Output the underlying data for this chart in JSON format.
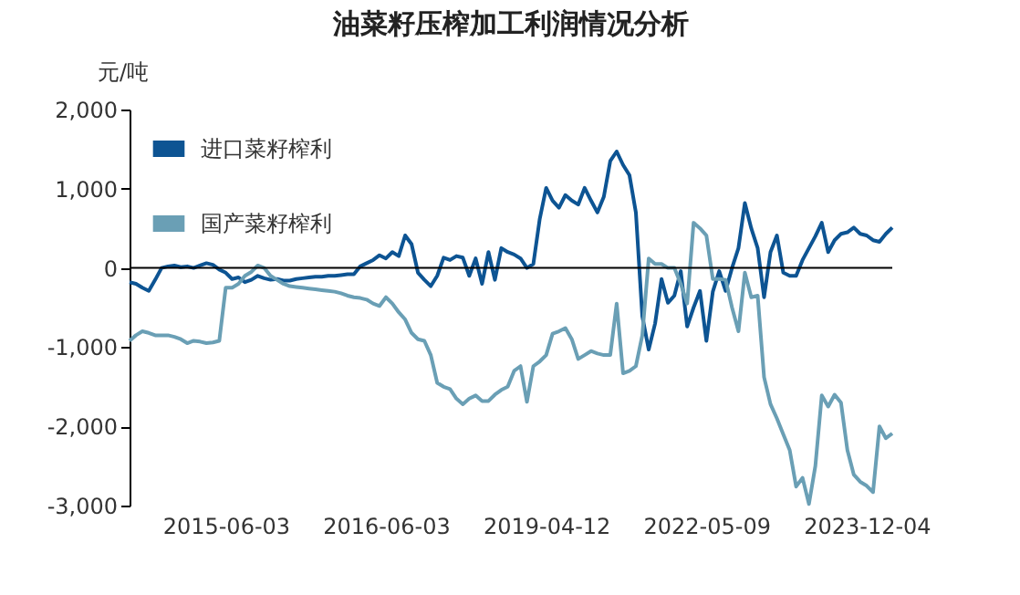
{
  "chart_data": {
    "type": "line",
    "title": "油菜籽压榨加工利润情况分析",
    "ylabel": "元/吨",
    "categories": [
      null,
      null,
      null,
      null,
      null,
      null,
      null,
      null,
      null,
      null,
      null,
      null,
      null,
      null,
      null,
      "2015-06-03",
      null,
      null,
      null,
      null,
      null,
      null,
      null,
      null,
      null,
      null,
      null,
      null,
      null,
      null,
      null,
      null,
      null,
      null,
      null,
      null,
      null,
      null,
      null,
      null,
      "2016-06-03",
      null,
      null,
      null,
      null,
      null,
      null,
      null,
      null,
      null,
      null,
      null,
      null,
      null,
      null,
      null,
      null,
      null,
      null,
      null,
      null,
      null,
      null,
      null,
      null,
      "2019-04-12",
      null,
      null,
      null,
      null,
      null,
      null,
      null,
      null,
      null,
      null,
      null,
      null,
      null,
      null,
      null,
      null,
      null,
      null,
      null,
      null,
      null,
      null,
      null,
      null,
      "2022-05-09",
      null,
      null,
      null,
      null,
      null,
      null,
      null,
      null,
      null,
      null,
      null,
      null,
      null,
      null,
      null,
      null,
      null,
      null,
      null,
      null,
      null,
      null,
      null,
      null,
      "2023-12-04",
      null,
      null,
      null,
      null
    ],
    "series": [
      {
        "name": "进口菜籽榨利",
        "color": "#0d5493",
        "values": [
          -180,
          -200,
          -250,
          -290,
          -150,
          0,
          20,
          30,
          10,
          20,
          0,
          30,
          60,
          40,
          -20,
          -60,
          -140,
          -120,
          -180,
          -150,
          -100,
          -130,
          -150,
          -140,
          -160,
          -160,
          -140,
          -130,
          -120,
          -110,
          -110,
          -100,
          -100,
          -90,
          -80,
          -80,
          20,
          60,
          100,
          160,
          120,
          200,
          150,
          410,
          300,
          -60,
          -150,
          -230,
          -100,
          130,
          100,
          150,
          130,
          -100,
          120,
          -200,
          200,
          -150,
          250,
          200,
          170,
          120,
          0,
          50,
          620,
          1010,
          850,
          760,
          920,
          850,
          800,
          1010,
          850,
          700,
          900,
          1350,
          1470,
          1300,
          1170,
          700,
          -610,
          -1030,
          -700,
          -140,
          -440,
          -350,
          -40,
          -740,
          -500,
          -290,
          -920,
          -300,
          -40,
          -290,
          0,
          250,
          820,
          500,
          250,
          -370,
          200,
          410,
          -60,
          -100,
          -100,
          100,
          250,
          400,
          570,
          200,
          350,
          430,
          450,
          510,
          430,
          410,
          350,
          330,
          430,
          510
        ]
      },
      {
        "name": "国产菜籽榨利",
        "color": "#6a9fb5",
        "values": [
          -920,
          -850,
          -800,
          -820,
          -850,
          -850,
          -850,
          -870,
          -900,
          -950,
          -920,
          -930,
          -950,
          -940,
          -920,
          -250,
          -250,
          -200,
          -100,
          -50,
          30,
          0,
          -100,
          -150,
          -200,
          -230,
          -240,
          -250,
          -260,
          -270,
          -280,
          -290,
          -300,
          -320,
          -350,
          -370,
          -380,
          -400,
          -450,
          -480,
          -370,
          -450,
          -560,
          -650,
          -820,
          -900,
          -920,
          -1100,
          -1450,
          -1500,
          -1530,
          -1650,
          -1720,
          -1650,
          -1610,
          -1680,
          -1680,
          -1600,
          -1540,
          -1500,
          -1300,
          -1240,
          -1690,
          -1240,
          -1180,
          -1100,
          -830,
          -800,
          -760,
          -900,
          -1150,
          -1100,
          -1050,
          -1080,
          -1100,
          -1100,
          -450,
          -1330,
          -1300,
          -1240,
          -850,
          120,
          50,
          50,
          0,
          0,
          -200,
          -450,
          570,
          500,
          410,
          -140,
          -140,
          -150,
          -500,
          -800,
          -60,
          -370,
          -350,
          -1380,
          -1720,
          -1900,
          -2100,
          -2300,
          -2760,
          -2650,
          -2980,
          -2500,
          -1610,
          -1750,
          -1600,
          -1700,
          -2300,
          -2610,
          -2700,
          -2750,
          -2830,
          -2000,
          -2150,
          -2090
        ]
      }
    ],
    "ylim": [
      -3000,
      2000
    ],
    "yticks": [
      {
        "value": -3000,
        "label": "-3,000"
      },
      {
        "value": -2000,
        "label": "-2,000"
      },
      {
        "value": -1000,
        "label": "-1,000"
      },
      0,
      {
        "value": 1000,
        "label": "1,000"
      },
      {
        "value": 2000,
        "label": "2,000"
      }
    ],
    "ref_lines": [
      {
        "axis": "y",
        "value": 0,
        "color": "#000000"
      }
    ],
    "legend": "top left",
    "grid": false
  }
}
